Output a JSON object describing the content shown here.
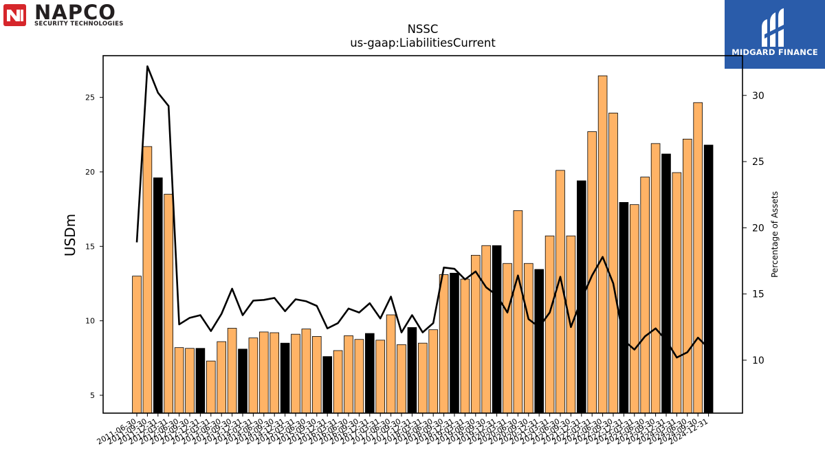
{
  "logos": {
    "left_brand": "NAPCO",
    "left_tagline": "SECURITY TECHNOLOGIES",
    "right_brand": "MIDGARD FINANCE"
  },
  "chart_data": {
    "type": "bar",
    "title": "NSSC",
    "subtitle": "us-gaap:LiabilitiesCurrent",
    "ylabel": "USDm",
    "y2label": "Percentage of Assets",
    "ylim": [
      3.8,
      27.8
    ],
    "y2lim": [
      6.0,
      33.0
    ],
    "yticks": [
      5,
      10,
      15,
      20,
      25
    ],
    "y2ticks": [
      10,
      15,
      20,
      25,
      30
    ],
    "categories": [
      "2011-06-30",
      "2011-09-30",
      "2011-12-31",
      "2012-03-31",
      "2012-06-30",
      "2012-09-30",
      "2012-12-31",
      "2013-03-31",
      "2013-06-30",
      "2013-09-30",
      "2013-12-31",
      "2014-03-31",
      "2014-06-30",
      "2014-09-30",
      "2014-12-31",
      "2015-03-31",
      "2015-06-30",
      "2015-09-30",
      "2015-12-31",
      "2016-03-31",
      "2016-06-30",
      "2016-09-30",
      "2016-12-31",
      "2017-03-31",
      "2017-06-30",
      "2017-09-30",
      "2017-12-31",
      "2018-03-31",
      "2018-06-30",
      "2018-09-30",
      "2018-12-31",
      "2019-03-31",
      "2019-06-30",
      "2019-09-30",
      "2019-12-31",
      "2020-03-31",
      "2020-06-30",
      "2020-09-30",
      "2020-12-31",
      "2021-03-31",
      "2021-06-30",
      "2021-09-30",
      "2021-12-31",
      "2022-03-31",
      "2022-06-30",
      "2022-09-30",
      "2022-12-31",
      "2023-03-31",
      "2023-06-30",
      "2023-09-30",
      "2023-12-31",
      "2024-03-31",
      "2024-06-30",
      "2024-09-30",
      "2024-12-31"
    ],
    "series": [
      {
        "type": "bar",
        "values": [
          13.0,
          21.7,
          19.6,
          18.5,
          8.2,
          8.15,
          8.15,
          7.3,
          8.6,
          9.5,
          8.1,
          8.85,
          9.25,
          9.2,
          8.5,
          9.1,
          9.45,
          8.95,
          7.6,
          8.0,
          9.0,
          8.75,
          9.15,
          8.7,
          10.4,
          8.4,
          9.55,
          8.5,
          9.4,
          13.1,
          13.2,
          12.8,
          14.4,
          15.05,
          15.05,
          13.85,
          17.4,
          13.85,
          13.45,
          15.7,
          20.1,
          15.7,
          19.4,
          22.7,
          26.45,
          23.95,
          17.95,
          17.8,
          19.65,
          21.9,
          21.2,
          19.95,
          22.2,
          24.65,
          21.8
        ],
        "highlight_fiscal_year_end": [
          false,
          false,
          true,
          false,
          false,
          false,
          true,
          false,
          false,
          false,
          true,
          false,
          false,
          false,
          true,
          false,
          false,
          false,
          true,
          false,
          false,
          false,
          true,
          false,
          false,
          false,
          true,
          false,
          false,
          false,
          true,
          false,
          false,
          false,
          true,
          false,
          false,
          false,
          true,
          false,
          false,
          false,
          true,
          false,
          false,
          false,
          true,
          false,
          false,
          false,
          true,
          false,
          false,
          false,
          true
        ]
      },
      {
        "type": "line",
        "values": [
          18.9,
          32.2,
          30.2,
          29.2,
          12.7,
          13.2,
          13.4,
          12.2,
          13.5,
          15.4,
          13.4,
          14.5,
          14.55,
          14.7,
          13.7,
          14.6,
          14.45,
          14.1,
          12.4,
          12.8,
          13.9,
          13.6,
          14.3,
          13.15,
          14.8,
          12.1,
          13.4,
          12.1,
          12.8,
          17.0,
          16.9,
          16.1,
          16.7,
          15.5,
          14.9,
          13.6,
          16.4,
          13.1,
          12.5,
          13.6,
          16.3,
          12.5,
          14.6,
          16.4,
          17.8,
          15.8,
          11.5,
          10.8,
          11.8,
          12.4,
          11.5,
          10.2,
          10.6,
          11.7,
          10.9
        ]
      }
    ],
    "colors": {
      "bar": "#ffb366",
      "bar_highlight": "#000000",
      "bar_edge": "#000000",
      "line": "#000000"
    },
    "grid": false,
    "legend": "none"
  }
}
